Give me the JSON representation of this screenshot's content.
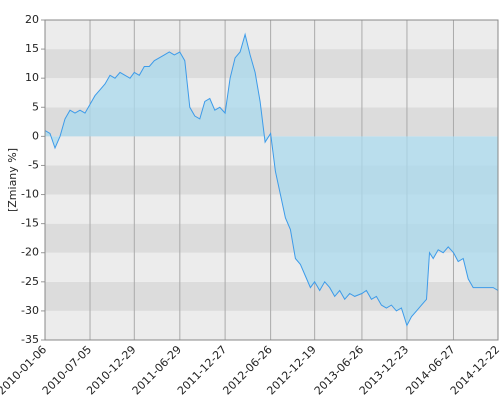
{
  "chart_data": {
    "type": "area",
    "y_label": "[Zmiany %]",
    "x": [
      "2010-01-06",
      "2010-01-26",
      "2010-02-15",
      "2010-03-07",
      "2010-03-27",
      "2010-04-16",
      "2010-05-06",
      "2010-05-26",
      "2010-06-15",
      "2010-07-05",
      "2010-07-25",
      "2010-08-14",
      "2010-09-03",
      "2010-09-23",
      "2010-10-13",
      "2010-11-02",
      "2010-11-22",
      "2010-12-12",
      "2010-12-29",
      "2011-01-18",
      "2011-02-07",
      "2011-02-27",
      "2011-03-19",
      "2011-04-08",
      "2011-04-28",
      "2011-05-18",
      "2011-06-07",
      "2011-06-29",
      "2011-07-19",
      "2011-08-08",
      "2011-08-28",
      "2011-09-17",
      "2011-10-07",
      "2011-10-27",
      "2011-11-16",
      "2011-12-06",
      "2011-12-27",
      "2012-01-16",
      "2012-02-05",
      "2012-02-25",
      "2012-03-16",
      "2012-04-05",
      "2012-04-25",
      "2012-05-15",
      "2012-06-04",
      "2012-06-26",
      "2012-07-15",
      "2012-08-04",
      "2012-08-24",
      "2012-09-13",
      "2012-10-03",
      "2012-10-23",
      "2012-11-12",
      "2012-12-02",
      "2012-12-19",
      "2013-01-08",
      "2013-01-28",
      "2013-02-17",
      "2013-03-09",
      "2013-03-29",
      "2013-04-18",
      "2013-05-08",
      "2013-05-28",
      "2013-06-26",
      "2013-07-14",
      "2013-08-03",
      "2013-08-23",
      "2013-09-12",
      "2013-10-02",
      "2013-10-22",
      "2013-11-11",
      "2013-12-01",
      "2013-12-23",
      "2014-01-10",
      "2014-01-30",
      "2014-02-19",
      "2014-03-11",
      "2014-03-23",
      "2014-04-07",
      "2014-04-27",
      "2014-05-17",
      "2014-06-06",
      "2014-06-27",
      "2014-07-16",
      "2014-08-05",
      "2014-08-25",
      "2014-09-14",
      "2014-10-04",
      "2014-10-24",
      "2014-11-13",
      "2014-12-03",
      "2014-12-22"
    ],
    "values": [
      1,
      0.5,
      -2,
      0,
      3,
      4.5,
      4,
      4.5,
      4,
      5.5,
      7,
      8,
      9,
      10.5,
      10,
      11,
      10.5,
      10,
      11,
      10.5,
      12,
      12,
      13,
      13.5,
      14,
      14.5,
      14,
      14.5,
      13,
      5,
      3.5,
      3,
      6,
      6.5,
      4.5,
      5,
      4,
      10,
      13.5,
      14.5,
      17.5,
      14,
      11,
      6,
      -1,
      0.5,
      -6,
      -10,
      -14,
      -16,
      -21,
      -22,
      -24,
      -26,
      -25,
      -26.5,
      -25,
      -26,
      -27.5,
      -26.5,
      -28,
      -27,
      -27.5,
      -27,
      -26.5,
      -28,
      -27.5,
      -29,
      -29.5,
      -29,
      -30,
      -29.5,
      -32.5,
      -31,
      -30,
      -29,
      -28,
      -20,
      -21,
      -19.5,
      -20,
      -19,
      -20,
      -21.5,
      -21,
      -24.5,
      -26,
      -26,
      -26,
      -26,
      -26,
      -26.5
    ],
    "line_color": "#3d9be9",
    "fill_color": "#a9d9ee",
    "xlim": [
      "2010-01-06",
      "2014-12-22"
    ],
    "xticks": [
      "2010-01-06",
      "2010-07-05",
      "2010-12-29",
      "2011-06-29",
      "2011-12-27",
      "2012-06-26",
      "2012-12-19",
      "2013-06-26",
      "2013-12-23",
      "2014-06-27",
      "2014-12-22"
    ],
    "ylim": [
      -35,
      20
    ],
    "yticks": [
      -35,
      -30,
      -25,
      -20,
      -15,
      -10,
      -5,
      0,
      5,
      10,
      15,
      20
    ],
    "grid": true,
    "bands": [
      "#ececec",
      "#dcdcdc"
    ]
  }
}
